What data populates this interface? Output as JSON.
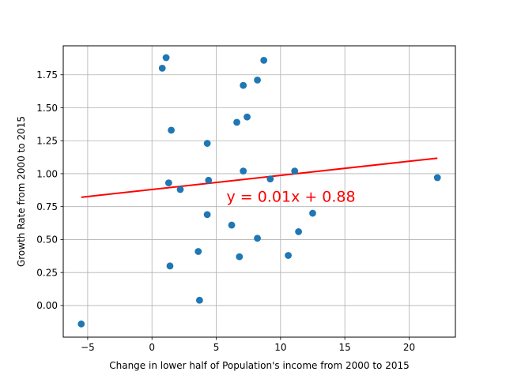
{
  "chart_data": {
    "type": "scatter",
    "title": "",
    "xlabel": "Change in lower half of Population's income from 2000 to 2015",
    "ylabel": "Growth Rate from 2000 to 2015",
    "xlim": [
      -6.9,
      23.6
    ],
    "ylim": [
      -0.24,
      1.97
    ],
    "grid": true,
    "xticks": [
      -5,
      0,
      5,
      10,
      15,
      20
    ],
    "xtick_labels": [
      "−5",
      "0",
      "5",
      "10",
      "15",
      "20"
    ],
    "yticks": [
      0.0,
      0.25,
      0.5,
      0.75,
      1.0,
      1.25,
      1.5,
      1.75
    ],
    "ytick_labels": [
      "0.00",
      "0.25",
      "0.50",
      "0.75",
      "1.00",
      "1.25",
      "1.50",
      "1.75"
    ],
    "points": [
      {
        "x": -5.5,
        "y": -0.14
      },
      {
        "x": 0.8,
        "y": 1.8
      },
      {
        "x": 1.1,
        "y": 1.88
      },
      {
        "x": 1.3,
        "y": 0.93
      },
      {
        "x": 1.4,
        "y": 0.3
      },
      {
        "x": 1.5,
        "y": 1.33
      },
      {
        "x": 2.2,
        "y": 0.88
      },
      {
        "x": 3.6,
        "y": 0.41
      },
      {
        "x": 3.7,
        "y": 0.04
      },
      {
        "x": 4.3,
        "y": 1.23
      },
      {
        "x": 4.3,
        "y": 0.69
      },
      {
        "x": 4.4,
        "y": 0.95
      },
      {
        "x": 6.2,
        "y": 0.61
      },
      {
        "x": 6.6,
        "y": 1.39
      },
      {
        "x": 6.8,
        "y": 0.37
      },
      {
        "x": 7.1,
        "y": 1.67
      },
      {
        "x": 7.1,
        "y": 1.02
      },
      {
        "x": 7.4,
        "y": 1.43
      },
      {
        "x": 8.2,
        "y": 1.71
      },
      {
        "x": 8.2,
        "y": 0.51
      },
      {
        "x": 8.7,
        "y": 1.86
      },
      {
        "x": 9.2,
        "y": 0.96
      },
      {
        "x": 10.6,
        "y": 0.38
      },
      {
        "x": 11.1,
        "y": 1.02
      },
      {
        "x": 11.4,
        "y": 0.56
      },
      {
        "x": 12.5,
        "y": 0.7
      },
      {
        "x": 22.2,
        "y": 0.97
      }
    ],
    "regression": {
      "slope": 0.0107,
      "intercept": 0.88,
      "x_range": [
        -5.5,
        22.2
      ],
      "equation_label": "y = 0.01x + 0.88",
      "label_position": {
        "x": 5.8,
        "y": 0.83
      }
    },
    "colors": {
      "points": "#1f77b4",
      "line": "#ff0000",
      "annotation": "#ff0000",
      "grid": "#b0b0b0",
      "axes": "#000000"
    }
  }
}
